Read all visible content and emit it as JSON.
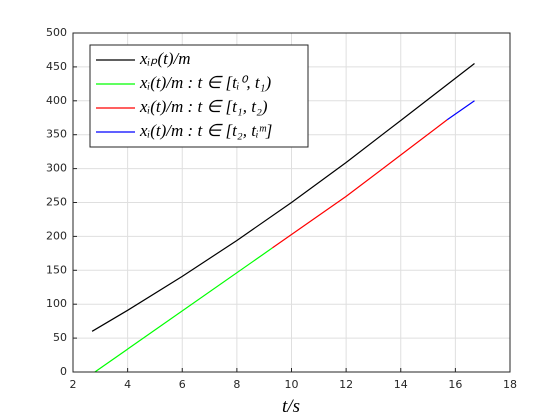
{
  "chart_data": {
    "type": "line",
    "xlabel": "t/s",
    "xlim": [
      2,
      18
    ],
    "xticks": [
      2,
      4,
      6,
      8,
      10,
      12,
      14,
      16,
      18
    ],
    "ylim": [
      0,
      500
    ],
    "yticks": [
      0,
      50,
      100,
      150,
      200,
      250,
      300,
      350,
      400,
      450,
      500
    ],
    "grid": true,
    "legend": "upper left",
    "series": [
      {
        "name": "xᵢₚ(t)/m",
        "color": "#000000",
        "x": [
          2.7,
          4,
          6,
          8,
          10,
          12,
          14,
          16.7
        ],
        "values": [
          60,
          91,
          141,
          194,
          250,
          309,
          371,
          455
        ]
      },
      {
        "name": "xᵢ(t)/m : t ∈ [tᵢ⁰, t₁)",
        "color": "#00ff00",
        "x": [
          2.8,
          9.3
        ],
        "values": [
          0,
          183
        ]
      },
      {
        "name": "xᵢ(t)/m : t ∈ [t₁, t₂)",
        "color": "#ff0000",
        "x": [
          9.3,
          12,
          14,
          15.7
        ],
        "values": [
          183,
          259,
          320,
          372
        ]
      },
      {
        "name": "xᵢ(t)/m : t ∈ [t₂, tᵢᵐ]",
        "color": "#0000ff",
        "x": [
          15.7,
          16.7
        ],
        "values": [
          372,
          400
        ]
      }
    ]
  }
}
